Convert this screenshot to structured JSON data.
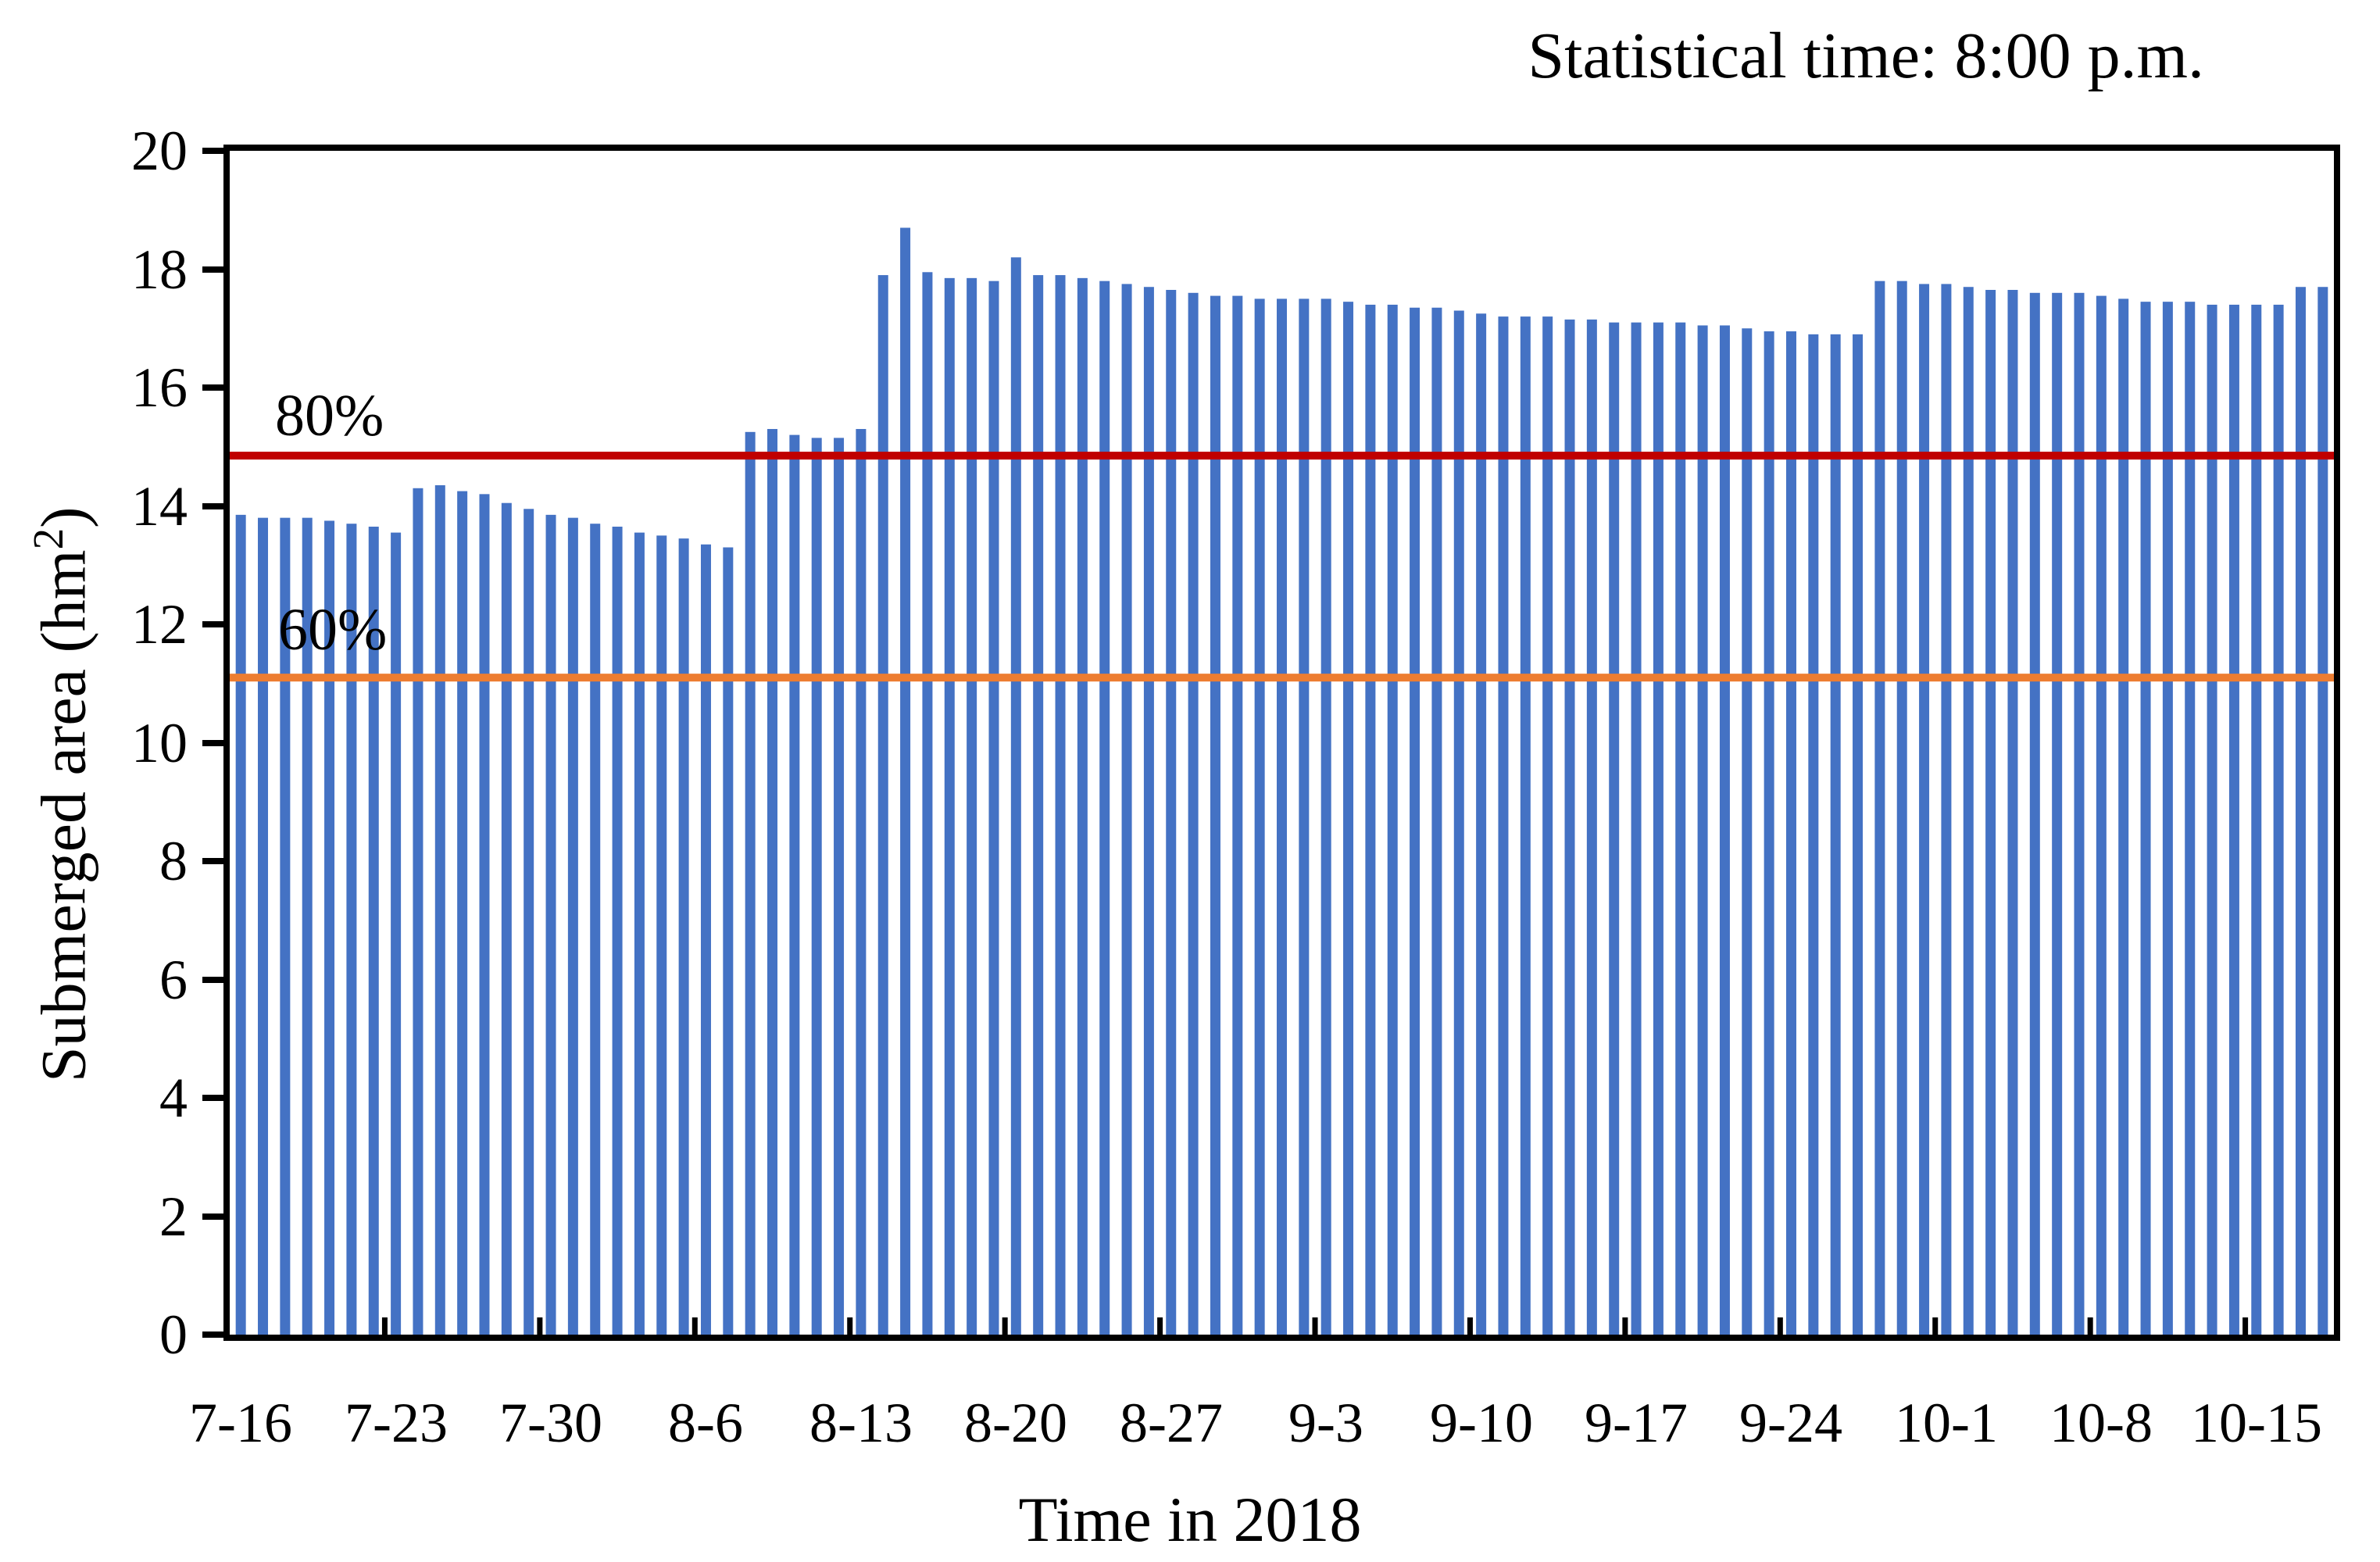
{
  "title": "Statistical time: 8:00 p.m.",
  "chart_data": {
    "type": "bar",
    "title": "Statistical time: 8:00 p.m.",
    "xlabel": "Time in 2018",
    "ylabel": "Submerged area (hm²)",
    "ylabel_main": "Submerged area (hm",
    "ylabel_sup": "2",
    "ylabel_close": ")",
    "ylim": [
      0,
      20
    ],
    "y_ticks": [
      0,
      2,
      4,
      6,
      8,
      10,
      12,
      14,
      16,
      18,
      20
    ],
    "grid": "off",
    "legend": "none",
    "bar_color": "#4472c4",
    "axis_color": "#000000",
    "x_tick_every": 7,
    "x_tick_labels": [
      "7-16",
      "7-23",
      "7-30",
      "8-6",
      "8-13",
      "8-20",
      "8-27",
      "9-3",
      "9-10",
      "9-17",
      "9-24",
      "10-1",
      "10-8",
      "10-15"
    ],
    "reference_lines": [
      {
        "label": "80%",
        "value": 14.85,
        "color": "#c00000"
      },
      {
        "label": "60%",
        "value": 11.1,
        "color": "#ed7d31"
      }
    ],
    "categories": [
      "7-16",
      "7-17",
      "7-18",
      "7-19",
      "7-20",
      "7-21",
      "7-22",
      "7-23",
      "7-24",
      "7-25",
      "7-26",
      "7-27",
      "7-28",
      "7-29",
      "7-30",
      "7-31",
      "8-1",
      "8-2",
      "8-3",
      "8-4",
      "8-5",
      "8-6",
      "8-7",
      "8-8",
      "8-9",
      "8-10",
      "8-11",
      "8-12",
      "8-13",
      "8-14",
      "8-15",
      "8-16",
      "8-17",
      "8-18",
      "8-19",
      "8-20",
      "8-21",
      "8-22",
      "8-23",
      "8-24",
      "8-25",
      "8-26",
      "8-27",
      "8-28",
      "8-29",
      "8-30",
      "8-31",
      "9-1",
      "9-2",
      "9-3",
      "9-4",
      "9-5",
      "9-6",
      "9-7",
      "9-8",
      "9-9",
      "9-10",
      "9-11",
      "9-12",
      "9-13",
      "9-14",
      "9-15",
      "9-16",
      "9-17",
      "9-18",
      "9-19",
      "9-20",
      "9-21",
      "9-22",
      "9-23",
      "9-24",
      "9-25",
      "9-26",
      "9-27",
      "9-28",
      "9-29",
      "9-30",
      "10-1",
      "10-2",
      "10-3",
      "10-4",
      "10-5",
      "10-6",
      "10-7",
      "10-8",
      "10-9",
      "10-10",
      "10-11",
      "10-12",
      "10-13",
      "10-14",
      "10-15",
      "10-16",
      "10-17",
      "10-18"
    ],
    "values": [
      13.85,
      13.8,
      13.8,
      13.8,
      13.75,
      13.7,
      13.65,
      13.55,
      14.3,
      14.35,
      14.25,
      14.2,
      14.05,
      13.95,
      13.85,
      13.8,
      13.7,
      13.65,
      13.55,
      13.5,
      13.45,
      13.35,
      13.3,
      15.25,
      15.3,
      15.2,
      15.15,
      15.15,
      15.3,
      17.9,
      18.7,
      17.95,
      17.85,
      17.85,
      17.8,
      18.2,
      17.9,
      17.9,
      17.85,
      17.8,
      17.75,
      17.7,
      17.65,
      17.6,
      17.55,
      17.55,
      17.5,
      17.5,
      17.5,
      17.5,
      17.45,
      17.4,
      17.4,
      17.35,
      17.35,
      17.3,
      17.25,
      17.2,
      17.2,
      17.2,
      17.15,
      17.15,
      17.1,
      17.1,
      17.1,
      17.1,
      17.05,
      17.05,
      17.0,
      16.95,
      16.95,
      16.9,
      16.9,
      16.9,
      17.8,
      17.8,
      17.75,
      17.75,
      17.7,
      17.65,
      17.65,
      17.6,
      17.6,
      17.6,
      17.55,
      17.5,
      17.45,
      17.45,
      17.45,
      17.4,
      17.4,
      17.4,
      17.4,
      17.7,
      17.7
    ]
  }
}
